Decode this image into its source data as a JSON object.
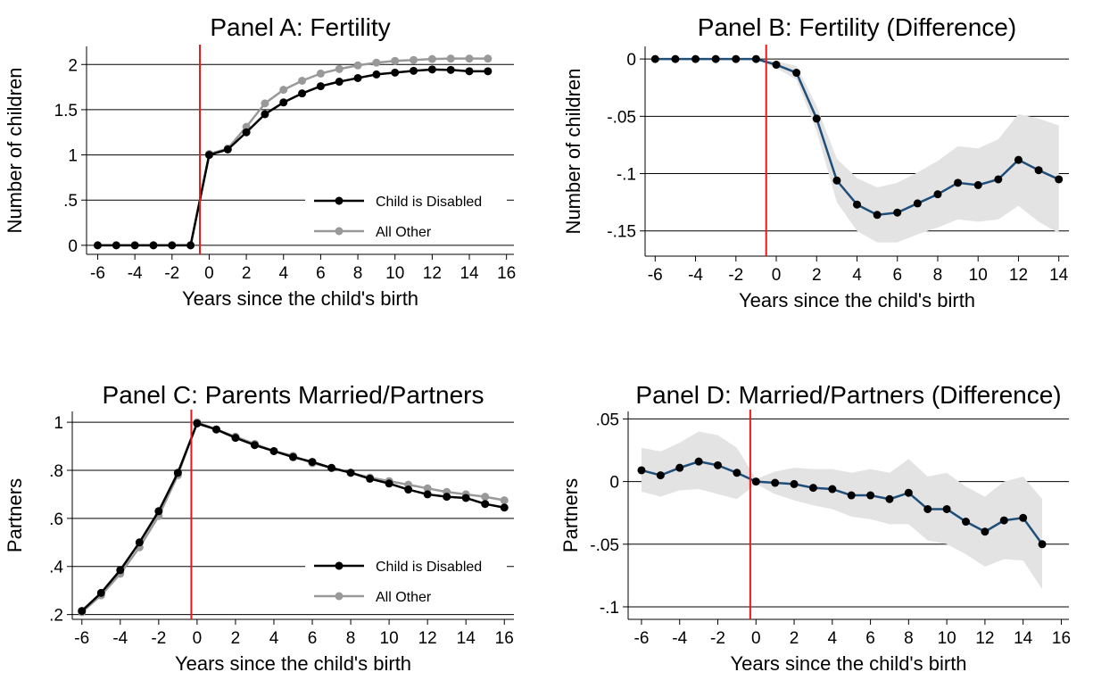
{
  "colors": {
    "disabled": "#000000",
    "other": "#999999",
    "difference_line": "#1f4e79",
    "difference_point": "#000000",
    "ci_band": "#e3e3e3",
    "event_line": "#e8191c",
    "grid": "#000000",
    "background": "#ffffff"
  },
  "chart_data": [
    {
      "id": "panel-a",
      "type": "line",
      "title": "Panel A: Fertility",
      "xlabel": "Years since the child's birth",
      "ylabel": "Number of children",
      "xlim": [
        -6.6,
        16.4
      ],
      "ylim": [
        -0.1,
        2.2
      ],
      "xticks": [
        -6,
        -4,
        -2,
        0,
        2,
        4,
        6,
        8,
        10,
        12,
        14,
        16
      ],
      "xtick_labels": [
        "-6",
        "-4",
        "-2",
        "0",
        "2",
        "4",
        "6",
        "8",
        "10",
        "12",
        "14",
        "16"
      ],
      "yticks": [
        0,
        0.5,
        1,
        1.5,
        2
      ],
      "ytick_labels": [
        "0",
        ".5",
        "1",
        "1.5",
        "2"
      ],
      "grid": "horizontal",
      "event_x": -0.5,
      "legend": {
        "position": "bottom-right"
      },
      "x": [
        -6,
        -5,
        -4,
        -3,
        -2,
        -1,
        0,
        1,
        2,
        3,
        4,
        5,
        6,
        7,
        8,
        9,
        10,
        11,
        12,
        13,
        14,
        15
      ],
      "series": [
        {
          "name": "All Other",
          "color_key": "other",
          "values": [
            0,
            0,
            0,
            0,
            0,
            0,
            1.01,
            1.07,
            1.31,
            1.57,
            1.72,
            1.82,
            1.9,
            1.95,
            1.99,
            2.02,
            2.04,
            2.05,
            2.06,
            2.065,
            2.065,
            2.065
          ]
        },
        {
          "name": "Child is Disabled",
          "color_key": "disabled",
          "values": [
            0,
            0,
            0,
            0,
            0,
            0,
            1.0,
            1.06,
            1.25,
            1.45,
            1.58,
            1.68,
            1.76,
            1.81,
            1.85,
            1.89,
            1.91,
            1.93,
            1.945,
            1.94,
            1.925,
            1.925
          ]
        }
      ]
    },
    {
      "id": "panel-b",
      "type": "line",
      "title": "Panel B: Fertility (Difference)",
      "xlabel": "Years since the child's birth",
      "ylabel": "Number of children",
      "xlim": [
        -6.5,
        14.5
      ],
      "ylim": [
        -0.172,
        0.011
      ],
      "xticks": [
        -6,
        -4,
        -2,
        0,
        2,
        4,
        6,
        8,
        10,
        12,
        14
      ],
      "xtick_labels": [
        "-6",
        "-4",
        "-2",
        "0",
        "2",
        "4",
        "6",
        "8",
        "10",
        "12",
        "14"
      ],
      "yticks": [
        0,
        -0.05,
        -0.1,
        -0.15
      ],
      "ytick_labels": [
        "0",
        "-.05",
        "-.1",
        "-.15"
      ],
      "grid": "horizontal",
      "event_x": -0.5,
      "x": [
        -6,
        -5,
        -4,
        -3,
        -2,
        -1,
        0,
        1,
        2,
        3,
        4,
        5,
        6,
        7,
        8,
        9,
        10,
        11,
        12,
        13,
        14
      ],
      "series": [
        {
          "color_key": "difference_line",
          "values": [
            0,
            0,
            0,
            0,
            0,
            0,
            -0.005,
            -0.012,
            -0.052,
            -0.106,
            -0.127,
            -0.136,
            -0.134,
            -0.126,
            -0.118,
            -0.108,
            -0.11,
            -0.105,
            -0.088,
            -0.097,
            -0.105
          ],
          "ci_lower": [
            0,
            0,
            0,
            0,
            0,
            0,
            -0.008,
            -0.018,
            -0.063,
            -0.125,
            -0.15,
            -0.16,
            -0.16,
            -0.153,
            -0.147,
            -0.14,
            -0.142,
            -0.14,
            -0.128,
            -0.142,
            -0.152
          ],
          "ci_upper": [
            0,
            0,
            0,
            0,
            0,
            0,
            -0.002,
            -0.006,
            -0.041,
            -0.087,
            -0.104,
            -0.112,
            -0.108,
            -0.099,
            -0.089,
            -0.076,
            -0.078,
            -0.07,
            -0.048,
            -0.052,
            -0.058
          ]
        }
      ]
    },
    {
      "id": "panel-c",
      "type": "line",
      "title": "Panel C: Parents Married/Partners",
      "xlabel": "Years since the child's birth",
      "ylabel": "Partners",
      "xlim": [
        -6.5,
        16.5
      ],
      "ylim": [
        0.18,
        1.045
      ],
      "xticks": [
        -6,
        -4,
        -2,
        0,
        2,
        4,
        6,
        8,
        10,
        12,
        14,
        16
      ],
      "xtick_labels": [
        "-6",
        "-4",
        "-2",
        "0",
        "2",
        "4",
        "6",
        "8",
        "10",
        "12",
        "14",
        "16"
      ],
      "yticks": [
        0.2,
        0.4,
        0.6,
        0.8,
        1
      ],
      "ytick_labels": [
        ".2",
        ".4",
        ".6",
        ".8",
        "1"
      ],
      "grid": "horizontal",
      "event_x": -0.3,
      "legend": {
        "position": "bottom-right"
      },
      "x": [
        -6,
        -5,
        -4,
        -3,
        -2,
        -1,
        0,
        1,
        2,
        3,
        4,
        5,
        6,
        7,
        8,
        9,
        10,
        11,
        12,
        13,
        14,
        15,
        16
      ],
      "series": [
        {
          "name": "All Other",
          "color_key": "other",
          "values": [
            0.21,
            0.28,
            0.37,
            0.48,
            0.61,
            0.78,
            1.0,
            0.97,
            0.94,
            0.91,
            0.88,
            0.86,
            0.83,
            0.81,
            0.79,
            0.77,
            0.755,
            0.74,
            0.725,
            0.71,
            0.7,
            0.69,
            0.675
          ]
        },
        {
          "name": "Child is Disabled",
          "color_key": "disabled",
          "values": [
            0.215,
            0.29,
            0.385,
            0.5,
            0.63,
            0.79,
            0.995,
            0.97,
            0.935,
            0.905,
            0.88,
            0.855,
            0.835,
            0.81,
            0.79,
            0.765,
            0.745,
            0.72,
            0.7,
            0.69,
            0.685,
            0.66,
            0.645
          ]
        }
      ]
    },
    {
      "id": "panel-d",
      "type": "line",
      "title": "Panel D: Married/Partners (Difference)",
      "xlabel": "Years since the child's birth",
      "ylabel": "Partners",
      "xlim": [
        -6.7,
        16.4
      ],
      "ylim": [
        -0.11,
        0.056
      ],
      "xticks": [
        -6,
        -4,
        -2,
        0,
        2,
        4,
        6,
        8,
        10,
        12,
        14,
        16
      ],
      "xtick_labels": [
        "-6",
        "-4",
        "-2",
        "0",
        "2",
        "4",
        "6",
        "8",
        "10",
        "12",
        "14",
        "16"
      ],
      "yticks": [
        0.05,
        0,
        -0.05,
        -0.1
      ],
      "ytick_labels": [
        ".05",
        "0",
        "-.05",
        "-.1"
      ],
      "grid": "horizontal",
      "event_x": -0.3,
      "x": [
        -6,
        -5,
        -4,
        -3,
        -2,
        -1,
        0,
        1,
        2,
        3,
        4,
        5,
        6,
        7,
        8,
        9,
        10,
        11,
        12,
        13,
        14,
        15
      ],
      "series": [
        {
          "color_key": "difference_line",
          "values": [
            0.009,
            0.005,
            0.011,
            0.016,
            0.013,
            0.007,
            0.0,
            -0.001,
            -0.002,
            -0.005,
            -0.006,
            -0.011,
            -0.011,
            -0.014,
            -0.009,
            -0.022,
            -0.022,
            -0.032,
            -0.04,
            -0.031,
            -0.029,
            -0.05
          ],
          "ci_lower": [
            -0.008,
            -0.012,
            -0.007,
            -0.006,
            -0.01,
            -0.014,
            -0.002,
            -0.01,
            -0.015,
            -0.019,
            -0.022,
            -0.028,
            -0.03,
            -0.034,
            -0.034,
            -0.047,
            -0.05,
            -0.058,
            -0.068,
            -0.062,
            -0.063,
            -0.086
          ],
          "ci_upper": [
            0.027,
            0.024,
            0.031,
            0.04,
            0.037,
            0.027,
            0.002,
            0.008,
            0.011,
            0.01,
            0.01,
            0.007,
            0.01,
            0.007,
            0.018,
            0.004,
            0.007,
            -0.004,
            -0.012,
            0.0,
            0.004,
            -0.014
          ]
        }
      ]
    }
  ]
}
